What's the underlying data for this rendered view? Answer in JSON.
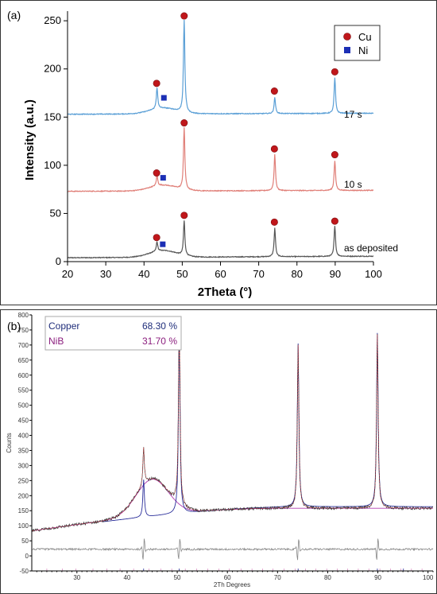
{
  "chart_data": [
    {
      "panel": "(a)",
      "type": "line",
      "xlabel": "2Theta (°)",
      "ylabel": "Intensity (a.u.)",
      "xlim": [
        20,
        100
      ],
      "ylim": [
        0,
        260
      ],
      "x_ticks": [
        20,
        30,
        40,
        50,
        60,
        70,
        80,
        90,
        100
      ],
      "y_ticks": [
        0,
        50,
        100,
        150,
        200,
        250
      ],
      "legend": {
        "position": "top-right",
        "entries": [
          {
            "label": "Cu",
            "marker": "circle",
            "color": "#c0171b"
          },
          {
            "label": "Ni",
            "marker": "square",
            "color": "#1c2fb5"
          }
        ]
      },
      "series": [
        {
          "name": "as deposited",
          "color": "#555555",
          "baseline": 4,
          "hump": {
            "center": 45,
            "height": 7,
            "width": 3.5
          },
          "peaks": [
            {
              "x": 43.4,
              "y": 14
            },
            {
              "x": 50.5,
              "y": 40
            },
            {
              "x": 74.2,
              "y": 34
            },
            {
              "x": 89.9,
              "y": 36
            }
          ],
          "cu_markers": [
            {
              "x": 43.3,
              "y": 25
            },
            {
              "x": 50.5,
              "y": 48
            },
            {
              "x": 74.1,
              "y": 41
            },
            {
              "x": 89.9,
              "y": 42
            }
          ],
          "ni_markers": [
            {
              "x": 44.9,
              "y": 18
            }
          ]
        },
        {
          "name": "10 s",
          "color": "#e07f78",
          "baseline": 73,
          "hump": {
            "center": 45,
            "height": 6,
            "width": 3.5
          },
          "peaks": [
            {
              "x": 43.4,
              "y": 84
            },
            {
              "x": 50.5,
              "y": 137
            },
            {
              "x": 74.2,
              "y": 111
            },
            {
              "x": 89.9,
              "y": 104
            }
          ],
          "cu_markers": [
            {
              "x": 43.3,
              "y": 92
            },
            {
              "x": 50.5,
              "y": 144
            },
            {
              "x": 74.1,
              "y": 117
            },
            {
              "x": 89.9,
              "y": 111
            }
          ],
          "ni_markers": [
            {
              "x": 45.0,
              "y": 87
            }
          ]
        },
        {
          "name": "17 s",
          "color": "#5a9fd6",
          "baseline": 153,
          "hump": {
            "center": 45,
            "height": 6,
            "width": 3.5
          },
          "peaks": [
            {
              "x": 43.4,
              "y": 175
            },
            {
              "x": 50.5,
              "y": 249
            },
            {
              "x": 74.2,
              "y": 170
            },
            {
              "x": 89.9,
              "y": 190
            }
          ],
          "cu_markers": [
            {
              "x": 43.3,
              "y": 185
            },
            {
              "x": 50.5,
              "y": 255
            },
            {
              "x": 74.1,
              "y": 177
            },
            {
              "x": 89.9,
              "y": 197
            }
          ],
          "ni_markers": [
            {
              "x": 45.2,
              "y": 170
            }
          ]
        }
      ]
    },
    {
      "panel": "(b)",
      "type": "line",
      "xlabel": "2Th Degrees",
      "ylabel": "Counts",
      "xlim": [
        21,
        101
      ],
      "ylim": [
        -50,
        800
      ],
      "x_ticks": [
        30,
        40,
        50,
        60,
        70,
        80,
        90,
        100
      ],
      "y_ticks": [
        -50,
        0,
        50,
        100,
        150,
        200,
        250,
        300,
        350,
        400,
        450,
        500,
        550,
        600,
        650,
        700,
        750,
        800
      ],
      "legend": {
        "position": "top-left",
        "entries": [
          {
            "label": "Copper",
            "value": "68.30 %",
            "color": "#1f2d7a"
          },
          {
            "label": "NiB",
            "value": "31.70 %",
            "color": "#8b1e7e"
          }
        ]
      },
      "observed": {
        "color": "#333333",
        "background_start": 83,
        "background_end": 158,
        "hump": {
          "center": 45,
          "height": 120,
          "width": 3.2
        },
        "peaks": [
          {
            "x": 43.3,
            "y": 360
          },
          {
            "x": 50.4,
            "y": 795
          },
          {
            "x": 74.1,
            "y": 700
          },
          {
            "x": 89.9,
            "y": 735
          }
        ]
      },
      "copper_fit": {
        "color": "#2a2e9a",
        "start_x": 35,
        "start_y": 113,
        "end_y": 163
      },
      "nib_fit": {
        "color": "#b03cb0"
      },
      "difference": {
        "color": "#888888",
        "offset": 22
      },
      "reflection_ticks": {
        "copper": [
          43.3,
          50.4,
          74.1,
          89.9,
          95.1
        ],
        "nib": [
          24.0,
          27.1,
          29.8,
          33.2,
          36.0,
          38.6,
          41.3,
          44.4,
          46.7,
          48.9,
          51.6,
          53.9,
          56.1,
          58.3,
          60.4,
          62.7,
          64.9,
          67.0,
          69.1,
          71.3,
          73.5,
          75.6,
          77.6,
          79.8,
          81.9,
          84.0,
          86.1,
          88.2,
          90.4,
          92.5,
          94.6,
          96.7,
          98.8
        ]
      }
    }
  ]
}
